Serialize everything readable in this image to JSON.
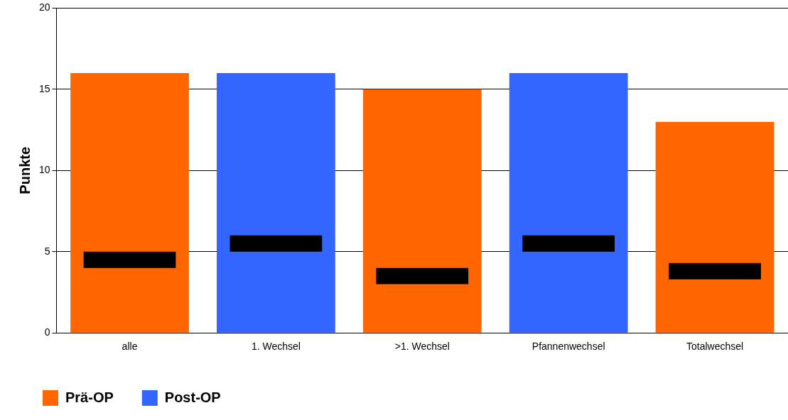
{
  "chart_data": {
    "type": "bar",
    "ylabel": "Punkte",
    "categories": [
      "alle",
      "1. Wechsel",
      ">1. Wechsel",
      "Pfannenwechsel",
      "Totalwechsel"
    ],
    "ylim": [
      0,
      20
    ],
    "yticks": [
      0,
      5,
      10,
      15,
      20
    ],
    "grid": "y",
    "legend": "bottom left",
    "series": [
      {
        "color": "#000000",
        "base": [
          4,
          5,
          3,
          5,
          3.3
        ],
        "values": [
          1,
          1,
          1,
          1,
          1
        ]
      },
      {
        "name": "Prä-OP",
        "color": "#ff6600",
        "values": [
          16,
          null,
          15,
          null,
          13
        ]
      },
      {
        "name": "Post-OP",
        "color": "#3366ff",
        "values": [
          null,
          16,
          null,
          16,
          null
        ]
      }
    ]
  }
}
